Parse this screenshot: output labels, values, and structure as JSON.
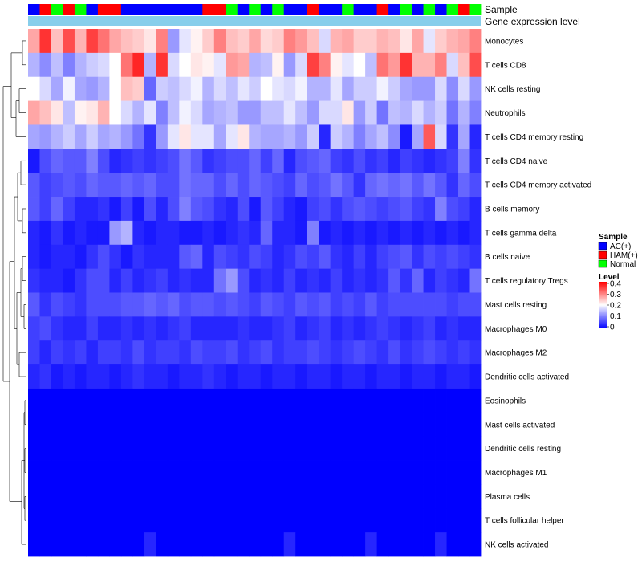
{
  "colors": {
    "AC(+)": "#0000ff",
    "HAM(+)": "#ff0000",
    "Normal": "#00ff00",
    "gene_expression_level": "#87ceeb",
    "scale_low": "#0000ff",
    "scale_mid": "#ffffff",
    "scale_high": "#ff0000"
  },
  "annotations": {
    "sample_label": "Sample",
    "gene_label": "Gene expression level"
  },
  "legend": {
    "sample_title": "Sample",
    "sample_entries": [
      "AC(+)",
      "HAM(+)",
      "Normal"
    ],
    "level_title": "Level",
    "level_ticks": [
      "0.4",
      "0.3",
      "0.2",
      "0.1",
      "0"
    ],
    "level_tick_values": [
      0.4,
      0.3,
      0.2,
      0.1,
      0
    ]
  },
  "chart_data": {
    "type": "heatmap",
    "title": "",
    "value_range": [
      0,
      0.4
    ],
    "sample_groups": [
      "AC(+)",
      "HAM(+)",
      "Normal",
      "HAM(+)",
      "Normal",
      "AC(+)",
      "HAM(+)",
      "HAM(+)",
      "AC(+)",
      "AC(+)",
      "AC(+)",
      "AC(+)",
      "AC(+)",
      "AC(+)",
      "AC(+)",
      "HAM(+)",
      "HAM(+)",
      "Normal",
      "AC(+)",
      "Normal",
      "AC(+)",
      "Normal",
      "AC(+)",
      "AC(+)",
      "HAM(+)",
      "AC(+)",
      "AC(+)",
      "Normal",
      "AC(+)",
      "AC(+)",
      "HAM(+)",
      "AC(+)",
      "Normal",
      "AC(+)",
      "Normal",
      "AC(+)",
      "Normal",
      "HAM(+)",
      "Normal"
    ],
    "rows": [
      "Monocytes",
      "T cells CD8",
      "NK cells resting",
      "Neutrophils",
      "T cells CD4 memory resting",
      "T cells CD4 naive",
      "T cells CD4 memory activated",
      "B cells memory",
      "T cells gamma delta",
      "B cells naive",
      "T cells regulatory  Tregs",
      "Mast cells resting",
      "Macrophages M0",
      "Macrophages M2",
      "Dendritic cells activated",
      "Eosinophils",
      "Mast cells activated",
      "Dendritic cells resting",
      "Macrophages M1",
      "Plasma cells",
      "T cells follicular helper",
      "NK cells activated"
    ],
    "values": [
      [
        0.27,
        0.36,
        0.25,
        0.34,
        0.26,
        0.35,
        0.31,
        0.27,
        0.25,
        0.24,
        0.22,
        0.3,
        0.12,
        0.18,
        0.21,
        0.24,
        0.3,
        0.25,
        0.24,
        0.27,
        0.23,
        0.24,
        0.3,
        0.28,
        0.25,
        0.17,
        0.26,
        0.27,
        0.24,
        0.24,
        0.26,
        0.25,
        0.22,
        0.27,
        0.18,
        0.24,
        0.26,
        0.27,
        0.3
      ],
      [
        0.14,
        0.11,
        0.15,
        0.1,
        0.14,
        0.16,
        0.17,
        0.2,
        0.31,
        0.37,
        0.14,
        0.36,
        0.17,
        0.2,
        0.22,
        0.21,
        0.18,
        0.28,
        0.27,
        0.14,
        0.15,
        0.21,
        0.12,
        0.17,
        0.35,
        0.3,
        0.21,
        0.18,
        0.2,
        0.15,
        0.31,
        0.28,
        0.36,
        0.26,
        0.26,
        0.3,
        0.17,
        0.25,
        0.34
      ],
      [
        0.2,
        0.17,
        0.13,
        0.19,
        0.13,
        0.12,
        0.14,
        0.2,
        0.25,
        0.24,
        0.08,
        0.16,
        0.15,
        0.17,
        0.19,
        0.14,
        0.17,
        0.15,
        0.18,
        0.16,
        0.2,
        0.18,
        0.17,
        0.19,
        0.14,
        0.14,
        0.18,
        0.13,
        0.16,
        0.16,
        0.19,
        0.16,
        0.13,
        0.12,
        0.12,
        0.17,
        0.11,
        0.17,
        0.12
      ],
      [
        0.27,
        0.25,
        0.22,
        0.15,
        0.21,
        0.22,
        0.26,
        0.2,
        0.17,
        0.14,
        0.18,
        0.1,
        0.15,
        0.19,
        0.17,
        0.13,
        0.14,
        0.15,
        0.12,
        0.12,
        0.15,
        0.15,
        0.18,
        0.15,
        0.12,
        0.17,
        0.17,
        0.22,
        0.12,
        0.16,
        0.09,
        0.15,
        0.14,
        0.17,
        0.14,
        0.16,
        0.09,
        0.14,
        0.1
      ],
      [
        0.13,
        0.12,
        0.14,
        0.16,
        0.13,
        0.16,
        0.13,
        0.14,
        0.12,
        0.09,
        0.04,
        0.12,
        0.18,
        0.22,
        0.18,
        0.18,
        0.13,
        0.18,
        0.22,
        0.14,
        0.13,
        0.13,
        0.14,
        0.12,
        0.16,
        0.03,
        0.16,
        0.14,
        0.1,
        0.13,
        0.15,
        0.11,
        0.02,
        0.13,
        0.33,
        0.17,
        0.04,
        0.13,
        0.03
      ],
      [
        0.02,
        0.06,
        0.08,
        0.07,
        0.07,
        0.1,
        0.06,
        0.03,
        0.04,
        0.05,
        0.04,
        0.05,
        0.06,
        0.09,
        0.07,
        0.04,
        0.05,
        0.06,
        0.06,
        0.08,
        0.05,
        0.08,
        0.03,
        0.06,
        0.07,
        0.08,
        0.05,
        0.04,
        0.06,
        0.04,
        0.05,
        0.03,
        0.05,
        0.04,
        0.03,
        0.04,
        0.05,
        0.1,
        0.04
      ],
      [
        0.07,
        0.05,
        0.06,
        0.07,
        0.06,
        0.08,
        0.07,
        0.07,
        0.08,
        0.07,
        0.08,
        0.06,
        0.06,
        0.09,
        0.08,
        0.08,
        0.06,
        0.08,
        0.06,
        0.08,
        0.07,
        0.06,
        0.05,
        0.08,
        0.06,
        0.07,
        0.09,
        0.07,
        0.04,
        0.08,
        0.09,
        0.08,
        0.09,
        0.07,
        0.09,
        0.07,
        0.04,
        0.08,
        0.06
      ],
      [
        0.07,
        0.05,
        0.08,
        0.05,
        0.03,
        0.03,
        0.04,
        0.02,
        0.05,
        0.02,
        0.06,
        0.03,
        0.06,
        0.1,
        0.07,
        0.06,
        0.04,
        0.03,
        0.06,
        0.02,
        0.07,
        0.05,
        0.03,
        0.02,
        0.05,
        0.06,
        0.04,
        0.06,
        0.07,
        0.06,
        0.05,
        0.06,
        0.07,
        0.05,
        0.04,
        0.1,
        0.06,
        0.05,
        0.03
      ],
      [
        0.03,
        0.02,
        0.04,
        0.02,
        0.03,
        0.02,
        0.02,
        0.12,
        0.14,
        0.03,
        0.02,
        0.03,
        0.03,
        0.02,
        0.02,
        0.03,
        0.02,
        0.03,
        0.04,
        0.03,
        0.08,
        0.03,
        0.03,
        0.02,
        0.1,
        0.02,
        0.03,
        0.02,
        0.03,
        0.02,
        0.03,
        0.02,
        0.03,
        0.02,
        0.03,
        0.02,
        0.03,
        0.02,
        0.03
      ],
      [
        0.03,
        0.02,
        0.03,
        0.03,
        0.02,
        0.04,
        0.06,
        0.04,
        0.02,
        0.04,
        0.03,
        0.03,
        0.03,
        0.07,
        0.08,
        0.03,
        0.06,
        0.05,
        0.04,
        0.06,
        0.05,
        0.03,
        0.04,
        0.06,
        0.05,
        0.07,
        0.04,
        0.03,
        0.05,
        0.03,
        0.05,
        0.06,
        0.07,
        0.04,
        0.06,
        0.05,
        0.06,
        0.05,
        0.04
      ],
      [
        0.04,
        0.03,
        0.03,
        0.02,
        0.04,
        0.06,
        0.06,
        0.03,
        0.05,
        0.03,
        0.04,
        0.05,
        0.03,
        0.04,
        0.03,
        0.03,
        0.09,
        0.12,
        0.06,
        0.03,
        0.04,
        0.03,
        0.05,
        0.03,
        0.04,
        0.03,
        0.05,
        0.03,
        0.04,
        0.03,
        0.04,
        0.07,
        0.04,
        0.08,
        0.03,
        0.05,
        0.04,
        0.03,
        0.09
      ],
      [
        0.07,
        0.04,
        0.06,
        0.05,
        0.04,
        0.06,
        0.06,
        0.06,
        0.07,
        0.07,
        0.08,
        0.07,
        0.08,
        0.06,
        0.07,
        0.07,
        0.06,
        0.07,
        0.06,
        0.05,
        0.07,
        0.06,
        0.05,
        0.07,
        0.06,
        0.07,
        0.05,
        0.06,
        0.05,
        0.07,
        0.05,
        0.06,
        0.06,
        0.06,
        0.06,
        0.06,
        0.05,
        0.06,
        0.06
      ],
      [
        0.05,
        0.06,
        0.04,
        0.03,
        0.03,
        0.05,
        0.03,
        0.03,
        0.04,
        0.03,
        0.04,
        0.03,
        0.04,
        0.05,
        0.03,
        0.03,
        0.03,
        0.03,
        0.04,
        0.03,
        0.03,
        0.04,
        0.05,
        0.03,
        0.04,
        0.05,
        0.03,
        0.04,
        0.03,
        0.04,
        0.05,
        0.04,
        0.03,
        0.04,
        0.05,
        0.03,
        0.04,
        0.03,
        0.03
      ],
      [
        0.05,
        0.03,
        0.05,
        0.04,
        0.05,
        0.03,
        0.05,
        0.05,
        0.04,
        0.06,
        0.04,
        0.05,
        0.05,
        0.04,
        0.06,
        0.05,
        0.05,
        0.06,
        0.04,
        0.05,
        0.06,
        0.04,
        0.05,
        0.05,
        0.06,
        0.05,
        0.04,
        0.05,
        0.06,
        0.05,
        0.04,
        0.06,
        0.04,
        0.05,
        0.06,
        0.05,
        0.04,
        0.05,
        0.04
      ],
      [
        0.03,
        0.04,
        0.02,
        0.03,
        0.02,
        0.03,
        0.03,
        0.02,
        0.03,
        0.04,
        0.03,
        0.03,
        0.02,
        0.03,
        0.03,
        0.04,
        0.03,
        0.02,
        0.03,
        0.03,
        0.02,
        0.03,
        0.03,
        0.02,
        0.03,
        0.03,
        0.02,
        0.03,
        0.03,
        0.02,
        0.03,
        0.03,
        0.02,
        0.03,
        0.03,
        0.02,
        0.03,
        0.03,
        0.02
      ],
      [
        0,
        0,
        0,
        0,
        0,
        0,
        0,
        0,
        0,
        0,
        0,
        0,
        0,
        0,
        0,
        0,
        0,
        0,
        0,
        0,
        0,
        0,
        0,
        0,
        0,
        0,
        0,
        0,
        0,
        0,
        0,
        0,
        0,
        0,
        0,
        0,
        0,
        0,
        0
      ],
      [
        0,
        0,
        0,
        0,
        0,
        0,
        0,
        0,
        0,
        0,
        0,
        0,
        0,
        0,
        0,
        0,
        0,
        0,
        0,
        0,
        0,
        0,
        0,
        0,
        0,
        0,
        0,
        0,
        0,
        0,
        0,
        0,
        0,
        0,
        0,
        0,
        0,
        0,
        0
      ],
      [
        0,
        0,
        0,
        0,
        0,
        0,
        0,
        0,
        0,
        0,
        0,
        0,
        0,
        0,
        0,
        0,
        0,
        0,
        0,
        0,
        0,
        0,
        0,
        0,
        0,
        0,
        0,
        0,
        0,
        0,
        0,
        0,
        0,
        0,
        0,
        0,
        0,
        0,
        0
      ],
      [
        0,
        0,
        0,
        0,
        0,
        0,
        0,
        0,
        0,
        0,
        0,
        0,
        0,
        0,
        0,
        0,
        0,
        0,
        0,
        0,
        0,
        0,
        0,
        0,
        0,
        0,
        0,
        0,
        0,
        0,
        0,
        0,
        0,
        0,
        0,
        0,
        0,
        0,
        0
      ],
      [
        0,
        0,
        0,
        0,
        0,
        0,
        0,
        0,
        0,
        0,
        0,
        0,
        0,
        0,
        0,
        0,
        0,
        0,
        0,
        0,
        0,
        0,
        0,
        0,
        0,
        0,
        0,
        0,
        0,
        0,
        0,
        0,
        0,
        0,
        0,
        0,
        0,
        0,
        0
      ],
      [
        0,
        0,
        0,
        0,
        0,
        0,
        0,
        0,
        0,
        0,
        0,
        0,
        0,
        0,
        0,
        0,
        0,
        0,
        0,
        0,
        0,
        0,
        0,
        0,
        0,
        0,
        0,
        0,
        0,
        0,
        0,
        0,
        0,
        0,
        0,
        0,
        0,
        0,
        0
      ],
      [
        0,
        0,
        0,
        0,
        0,
        0,
        0,
        0,
        0,
        0,
        0.03,
        0,
        0,
        0,
        0,
        0,
        0,
        0,
        0,
        0,
        0,
        0,
        0.03,
        0,
        0,
        0,
        0,
        0,
        0,
        0.03,
        0,
        0,
        0,
        0,
        0,
        0.03,
        0,
        0,
        0
      ]
    ]
  }
}
